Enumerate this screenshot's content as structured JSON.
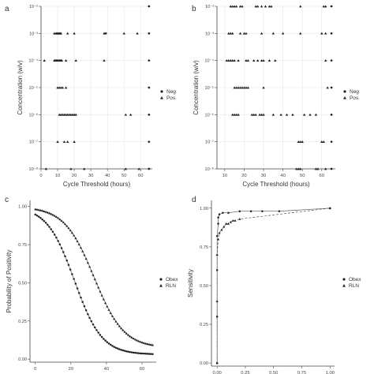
{
  "figure": {
    "panels": [
      "a",
      "b",
      "c",
      "d"
    ]
  },
  "chart_data": [
    {
      "id": "a",
      "type": "scatter",
      "title": "",
      "xlabel": "Cycle Threshold (hours)",
      "ylabel": "Concentration (w/v)",
      "xlim": [
        0,
        67
      ],
      "ylim": [
        -8,
        -2
      ],
      "xticks": [
        0,
        10,
        20,
        30,
        40,
        50,
        60
      ],
      "yticks": [
        -8,
        -7,
        -6,
        -5,
        -4,
        -3,
        -2
      ],
      "ytick_labels": [
        "10⁻⁸",
        "10⁻⁷",
        "10⁻⁶",
        "10⁻⁵",
        "10⁻⁴",
        "10⁻³",
        "10⁻²"
      ],
      "grid": true,
      "legend": "right",
      "series": [
        {
          "name": "Neg",
          "marker": "circle",
          "points": [
            [
              65,
              -2
            ],
            [
              39,
              -3
            ],
            [
              65,
              -3
            ],
            [
              65,
              -4
            ],
            [
              65,
              -5
            ],
            [
              65,
              -6
            ],
            [
              65,
              -7
            ],
            [
              65,
              -8
            ]
          ]
        },
        {
          "name": "Pos",
          "marker": "triangle",
          "points": [
            [
              8,
              -3
            ],
            [
              9,
              -3
            ],
            [
              9.5,
              -3
            ],
            [
              10,
              -3
            ],
            [
              10.5,
              -3
            ],
            [
              11,
              -3
            ],
            [
              11.5,
              -3
            ],
            [
              12,
              -3
            ],
            [
              16,
              -3
            ],
            [
              20,
              -3
            ],
            [
              38,
              -3
            ],
            [
              50,
              -3
            ],
            [
              58,
              -3
            ],
            [
              2,
              -4
            ],
            [
              8,
              -4
            ],
            [
              8.5,
              -4
            ],
            [
              9,
              -4
            ],
            [
              9.5,
              -4
            ],
            [
              10,
              -4
            ],
            [
              10.5,
              -4
            ],
            [
              11,
              -4
            ],
            [
              11.5,
              -4
            ],
            [
              12,
              -4
            ],
            [
              12.5,
              -4
            ],
            [
              15,
              -4
            ],
            [
              21,
              -4
            ],
            [
              38,
              -4
            ],
            [
              10,
              -5
            ],
            [
              11,
              -5
            ],
            [
              12,
              -5
            ],
            [
              13,
              -5
            ],
            [
              15,
              -5
            ],
            [
              11,
              -6
            ],
            [
              12,
              -6
            ],
            [
              13,
              -6
            ],
            [
              14,
              -6
            ],
            [
              15,
              -6
            ],
            [
              16,
              -6
            ],
            [
              17,
              -6
            ],
            [
              18,
              -6
            ],
            [
              19,
              -6
            ],
            [
              20,
              -6
            ],
            [
              21,
              -6
            ],
            [
              51,
              -6
            ],
            [
              54,
              -6
            ],
            [
              10,
              -7
            ],
            [
              14,
              -7
            ],
            [
              16,
              -7
            ],
            [
              20,
              -7
            ],
            [
              3,
              -8
            ],
            [
              18,
              -8
            ],
            [
              26,
              -8
            ],
            [
              51,
              -8
            ],
            [
              59,
              -8
            ]
          ]
        }
      ]
    },
    {
      "id": "b",
      "type": "scatter",
      "title": "",
      "xlabel": "Cycle Threshold (hours)",
      "ylabel": "Concentration (w/v)",
      "xlim": [
        6,
        67
      ],
      "ylim": [
        -8,
        -2
      ],
      "xticks": [
        10,
        20,
        30,
        40,
        50,
        60
      ],
      "yticks": [
        -8,
        -7,
        -6,
        -5,
        -4,
        -3,
        -2
      ],
      "ytick_labels": [
        "10⁻⁸",
        "10⁻⁷",
        "10⁻⁶",
        "10⁻⁵",
        "10⁻⁴",
        "10⁻³",
        "10⁻²"
      ],
      "grid": true,
      "legend": "right",
      "series": [
        {
          "name": "Neg",
          "marker": "circle",
          "points": [
            [
              65,
              -2
            ],
            [
              65,
              -3
            ],
            [
              65,
              -4
            ],
            [
              65,
              -5
            ],
            [
              65,
              -6
            ],
            [
              65,
              -7
            ],
            [
              65,
              -8
            ]
          ]
        },
        {
          "name": "Pos",
          "marker": "triangle",
          "points": [
            [
              13,
              -2
            ],
            [
              14,
              -2
            ],
            [
              15,
              -2
            ],
            [
              16,
              -2
            ],
            [
              18,
              -2
            ],
            [
              19,
              -2
            ],
            [
              26,
              -2
            ],
            [
              27,
              -2
            ],
            [
              29,
              -2
            ],
            [
              31,
              -2
            ],
            [
              33,
              -2
            ],
            [
              34,
              -2
            ],
            [
              49,
              -2
            ],
            [
              61,
              -2
            ],
            [
              62,
              -2
            ],
            [
              12,
              -3
            ],
            [
              13,
              -3
            ],
            [
              14,
              -3
            ],
            [
              18,
              -3
            ],
            [
              20,
              -3
            ],
            [
              21,
              -3
            ],
            [
              29,
              -3
            ],
            [
              35,
              -3
            ],
            [
              40,
              -3
            ],
            [
              49,
              -3
            ],
            [
              60,
              -3
            ],
            [
              62,
              -3
            ],
            [
              11,
              -4
            ],
            [
              12,
              -4
            ],
            [
              13,
              -4
            ],
            [
              14,
              -4
            ],
            [
              15,
              -4
            ],
            [
              17,
              -4
            ],
            [
              21,
              -4
            ],
            [
              22,
              -4
            ],
            [
              25,
              -4
            ],
            [
              27,
              -4
            ],
            [
              29,
              -4
            ],
            [
              30,
              -4
            ],
            [
              33,
              -4
            ],
            [
              36,
              -4
            ],
            [
              62,
              -4
            ],
            [
              15,
              -5
            ],
            [
              16,
              -5
            ],
            [
              17,
              -5
            ],
            [
              18,
              -5
            ],
            [
              19,
              -5
            ],
            [
              20,
              -5
            ],
            [
              21,
              -5
            ],
            [
              22,
              -5
            ],
            [
              30,
              -5
            ],
            [
              63,
              -5
            ],
            [
              14,
              -6
            ],
            [
              15,
              -6
            ],
            [
              16,
              -6
            ],
            [
              17,
              -6
            ],
            [
              24,
              -6
            ],
            [
              25,
              -6
            ],
            [
              26,
              -6
            ],
            [
              28,
              -6
            ],
            [
              29,
              -6
            ],
            [
              30,
              -6
            ],
            [
              35,
              -6
            ],
            [
              39,
              -6
            ],
            [
              42,
              -6
            ],
            [
              45,
              -6
            ],
            [
              51,
              -6
            ],
            [
              54,
              -6
            ],
            [
              57,
              -6
            ],
            [
              48,
              -7
            ],
            [
              49,
              -7
            ],
            [
              50,
              -7
            ],
            [
              60,
              -7
            ],
            [
              61,
              -7
            ],
            [
              47,
              -8
            ],
            [
              48,
              -8
            ],
            [
              49,
              -8
            ],
            [
              57,
              -8
            ],
            [
              58,
              -8
            ],
            [
              62,
              -8
            ]
          ]
        }
      ]
    },
    {
      "id": "c",
      "type": "line",
      "title": "",
      "xlabel": "Cycle Threshold (hours)",
      "ylabel": "Probability of Positivity",
      "xlim": [
        -3,
        68
      ],
      "ylim": [
        -0.02,
        1.04
      ],
      "xticks": [
        0,
        20,
        40,
        60
      ],
      "yticks": [
        0,
        0.25,
        0.5,
        0.75,
        1
      ],
      "ytick_labels": [
        "0.00",
        "0.25",
        "0.50",
        "0.75",
        "1.00"
      ],
      "grid": false,
      "legend": "right",
      "series": [
        {
          "name": "Obex",
          "marker": "circle",
          "x_range": [
            0,
            66
          ],
          "midpoint": 22,
          "slope": 0.13,
          "floor": 0.03,
          "n_points": 68
        },
        {
          "name": "RLN",
          "marker": "triangle",
          "x_range": [
            0,
            66
          ],
          "midpoint": 33,
          "slope": 0.12,
          "floor": 0.075,
          "n_points": 68
        }
      ]
    },
    {
      "id": "d",
      "type": "line",
      "title": "",
      "xlabel": "False Positive Rate",
      "ylabel": "Sensitivity",
      "xlim": [
        -0.05,
        1.04
      ],
      "ylim": [
        -0.02,
        1.05
      ],
      "xticks": [
        0,
        0.25,
        0.5,
        0.75,
        1
      ],
      "xtick_labels": [
        "0.00",
        "0.25",
        "0.50",
        "0.75",
        "1.00"
      ],
      "yticks": [
        0,
        0.25,
        0.5,
        0.75,
        1
      ],
      "ytick_labels": [
        "0.00",
        "0.25",
        "0.50",
        "0.75",
        "1.00"
      ],
      "grid": false,
      "legend": "right",
      "series": [
        {
          "name": "Obex",
          "marker": "circle",
          "points": [
            [
              0,
              0
            ],
            [
              0,
              0.3
            ],
            [
              0,
              0.6
            ],
            [
              0,
              0.82
            ],
            [
              0.01,
              0.9
            ],
            [
              0.01,
              0.94
            ],
            [
              0.02,
              0.96
            ],
            [
              0.05,
              0.97
            ],
            [
              0.1,
              0.97
            ],
            [
              0.2,
              0.98
            ],
            [
              0.3,
              0.98
            ],
            [
              0.4,
              0.98
            ],
            [
              0.55,
              0.98
            ],
            [
              1.0,
              1.0
            ]
          ]
        },
        {
          "name": "RLN",
          "marker": "triangle",
          "points": [
            [
              0,
              0
            ],
            [
              0,
              0.4
            ],
            [
              0,
              0.7
            ],
            [
              0.01,
              0.8
            ],
            [
              0.02,
              0.84
            ],
            [
              0.04,
              0.86
            ],
            [
              0.06,
              0.88
            ],
            [
              0.08,
              0.9
            ],
            [
              0.1,
              0.9
            ],
            [
              0.12,
              0.91
            ],
            [
              0.14,
              0.92
            ],
            [
              0.16,
              0.92
            ],
            [
              0.2,
              0.93
            ],
            [
              1.0,
              1.0
            ]
          ]
        }
      ]
    }
  ]
}
